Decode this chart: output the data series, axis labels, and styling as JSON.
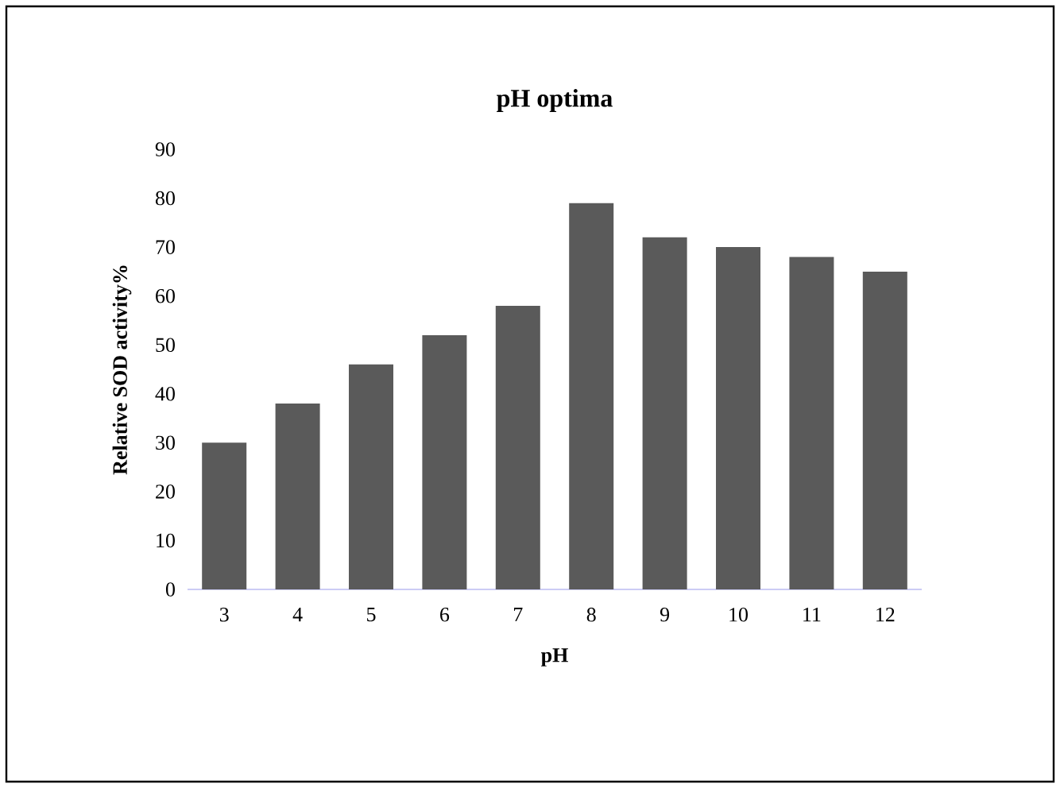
{
  "chart_data": {
    "type": "bar",
    "title": "pH optima",
    "xlabel": "pH",
    "ylabel": "Relative SOD activity%",
    "categories": [
      "3",
      "4",
      "5",
      "6",
      "7",
      "8",
      "9",
      "10",
      "11",
      "12"
    ],
    "values": [
      30,
      38,
      46,
      52,
      58,
      79,
      72,
      70,
      68,
      65
    ],
    "color": "#5a5a5a",
    "ylim": [
      0,
      90
    ],
    "yticks": [
      0,
      10,
      20,
      30,
      40,
      50,
      60,
      70,
      80,
      90
    ]
  }
}
